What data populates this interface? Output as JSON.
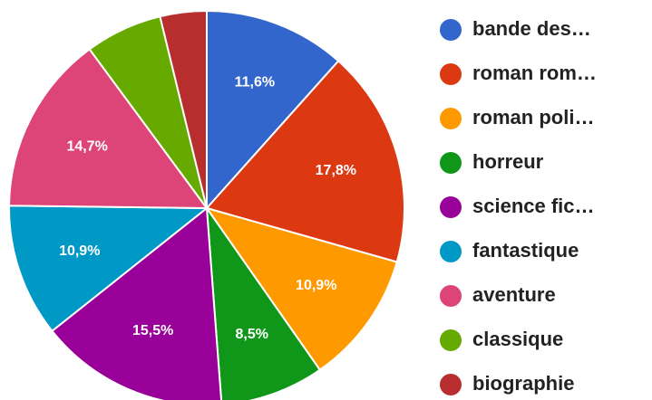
{
  "chart_data": {
    "type": "pie",
    "title": "",
    "slices": [
      {
        "label": "bande des…",
        "value": 11.6,
        "value_label": "11,6%",
        "color": "#3366cc"
      },
      {
        "label": "roman rom…",
        "value": 17.8,
        "value_label": "17,8%",
        "color": "#dc3912"
      },
      {
        "label": "roman poli…",
        "value": 10.9,
        "value_label": "10,9%",
        "color": "#ff9900"
      },
      {
        "label": "horreur",
        "value": 8.5,
        "value_label": "8,5%",
        "color": "#109618"
      },
      {
        "label": "science fic…",
        "value": 15.5,
        "value_label": "15,5%",
        "color": "#990099"
      },
      {
        "label": "fantastique",
        "value": 10.9,
        "value_label": "10,9%",
        "color": "#0099c6"
      },
      {
        "label": "aventure",
        "value": 14.7,
        "value_label": "14,7%",
        "color": "#dd4477"
      },
      {
        "label": "classique",
        "value": 6.3,
        "value_label": "",
        "color": "#66aa00"
      },
      {
        "label": "biographie",
        "value": 3.8,
        "value_label": "",
        "color": "#b82e2e"
      }
    ],
    "legend_position": "right",
    "start_angle": "12 o'clock",
    "direction": "clockwise"
  }
}
